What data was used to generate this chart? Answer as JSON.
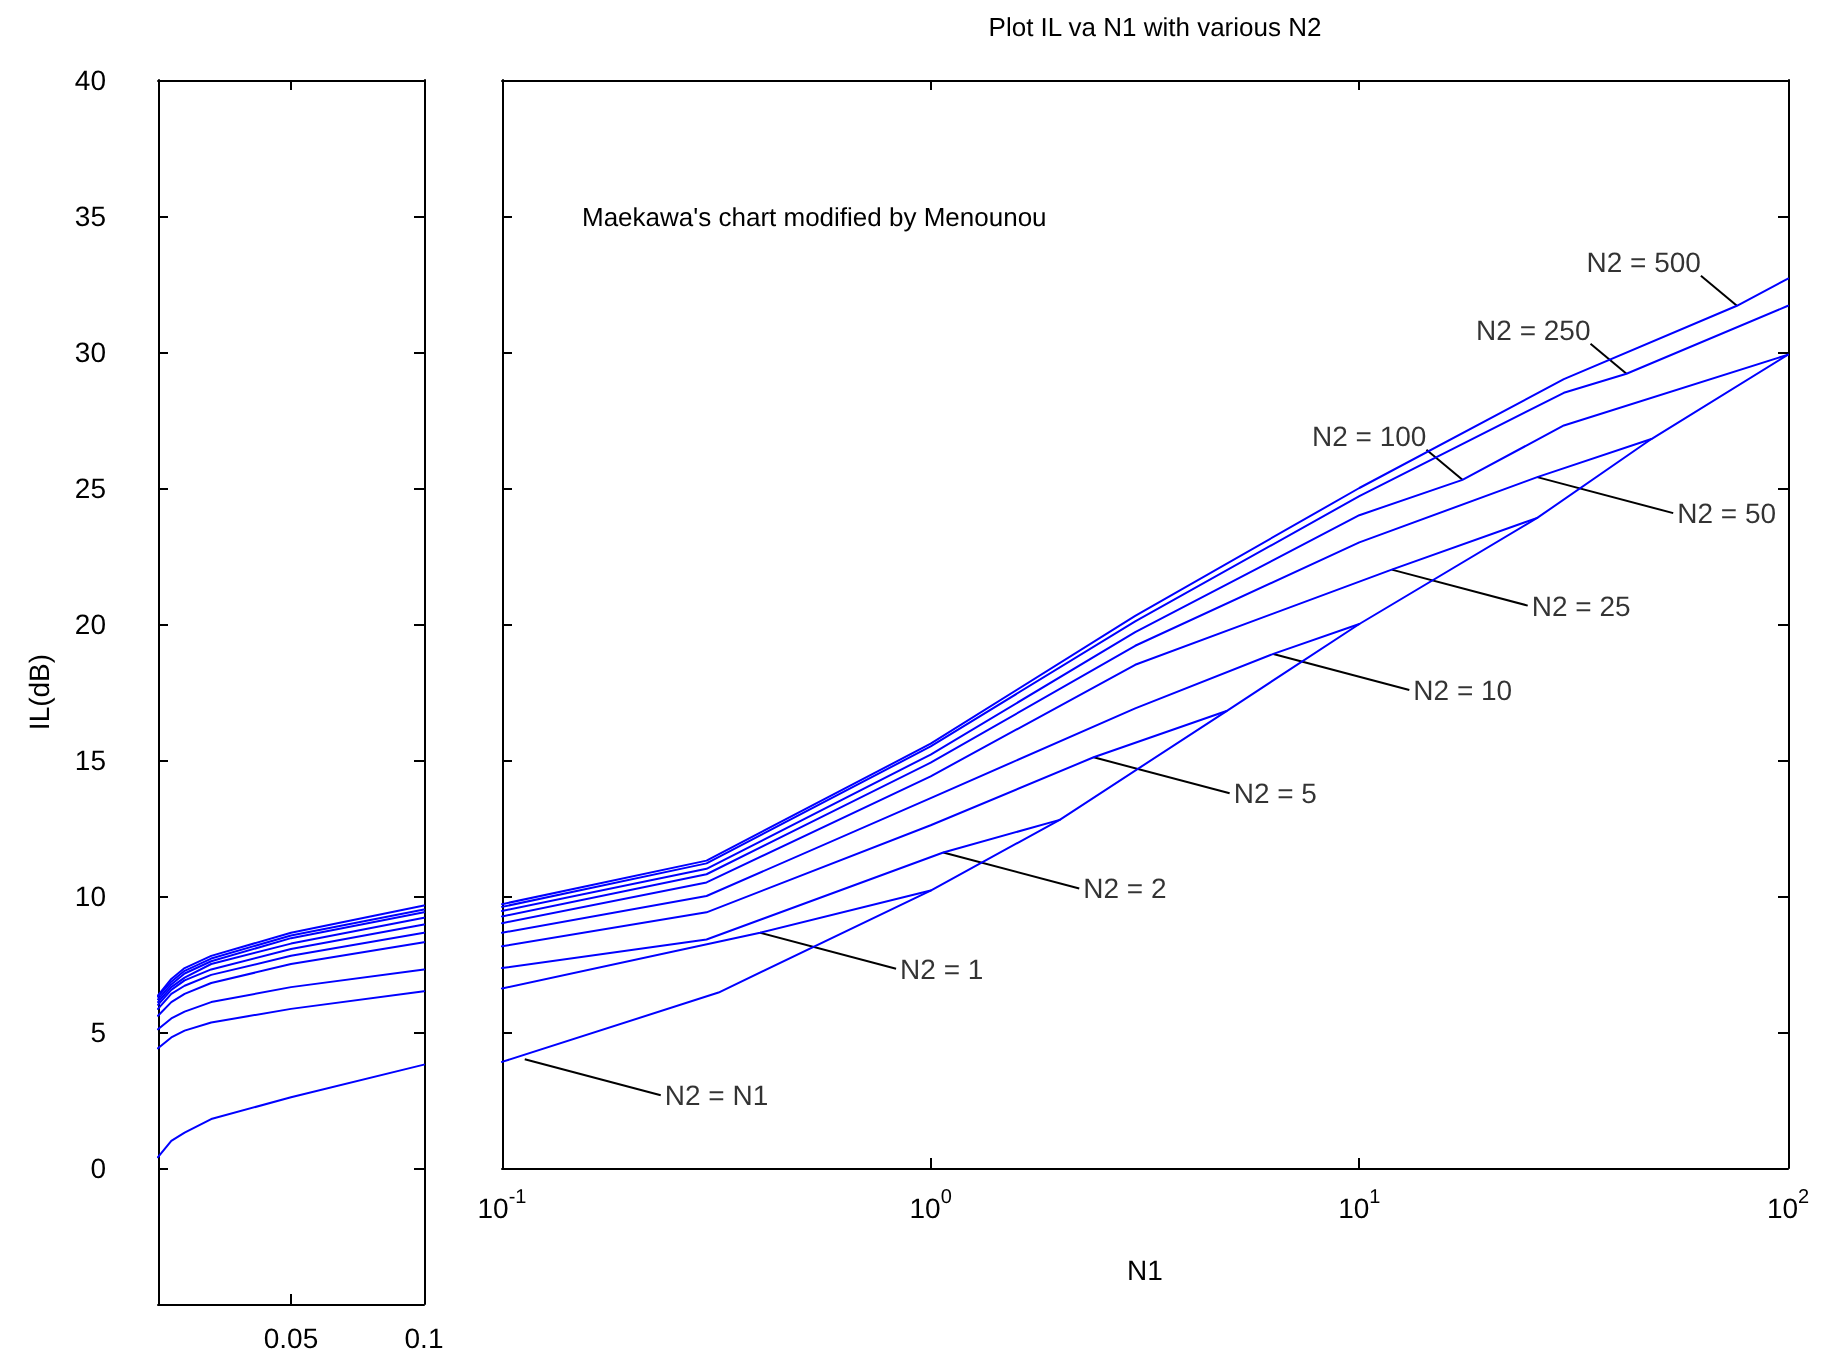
{
  "chart_data": [
    {
      "type": "line",
      "ylabel": "IL(dB)",
      "x": [
        0,
        0.005,
        0.01,
        0.02,
        0.05,
        0.1
      ],
      "xlim": [
        0,
        0.1
      ],
      "xticks": [
        0.05,
        0.1
      ],
      "ylim": [
        -5,
        40
      ],
      "yticks": [
        0,
        5,
        10,
        15,
        20,
        25,
        30,
        35,
        40
      ],
      "series": [
        {
          "color": "#0000ff",
          "values": [
            0.4,
            1.0,
            1.3,
            1.8,
            2.6,
            3.8
          ]
        },
        {
          "color": "#0000ff",
          "values": [
            4.4,
            4.8,
            5.05,
            5.35,
            5.85,
            6.5
          ]
        },
        {
          "color": "#0000ff",
          "values": [
            5.1,
            5.5,
            5.75,
            6.1,
            6.65,
            7.3
          ]
        },
        {
          "color": "#0000ff",
          "values": [
            5.6,
            6.1,
            6.4,
            6.8,
            7.5,
            8.3
          ]
        },
        {
          "color": "#0000ff",
          "values": [
            5.85,
            6.4,
            6.7,
            7.1,
            7.8,
            8.65
          ]
        },
        {
          "color": "#0000ff",
          "values": [
            6.0,
            6.55,
            6.9,
            7.3,
            8.05,
            8.95
          ]
        },
        {
          "color": "#0000ff",
          "values": [
            6.1,
            6.65,
            7.0,
            7.5,
            8.25,
            9.2
          ]
        },
        {
          "color": "#0000ff",
          "values": [
            6.2,
            6.75,
            7.15,
            7.6,
            8.45,
            9.4
          ]
        },
        {
          "color": "#0000ff",
          "values": [
            6.3,
            6.85,
            7.25,
            7.7,
            8.55,
            9.5
          ]
        },
        {
          "color": "#0000ff",
          "values": [
            6.35,
            6.95,
            7.35,
            7.8,
            8.65,
            9.65
          ]
        }
      ]
    },
    {
      "type": "line",
      "title": "Plot IL va N1 with various N2",
      "xlabel": "N1",
      "log": "x",
      "xlim": [
        0.1,
        100
      ],
      "xticks": [
        {
          "value": 0.1,
          "label": "10$^{-1}$"
        },
        {
          "value": 1,
          "label": "10$^{0}$"
        },
        {
          "value": 10,
          "label": "10$^{1}$"
        },
        {
          "value": 100,
          "label": "10$^{2}$"
        }
      ],
      "ylim": [
        0,
        40
      ],
      "yticks": [
        0,
        5,
        10,
        15,
        20,
        25,
        30,
        35,
        40
      ],
      "tick_labels": "x",
      "series": [
        {
          "color": "#0000ff",
          "x": [
            0.1,
            0.32,
            1,
            2,
            4.9,
            10,
            26,
            48,
            100
          ],
          "values": [
            3.9,
            6.45,
            10.2,
            12.8,
            16.8,
            20.0,
            23.9,
            26.8,
            29.9
          ]
        },
        {
          "color": "#0000ff",
          "x": [
            0.1,
            0.4,
            1
          ],
          "values": [
            6.6,
            8.65,
            10.2
          ]
        },
        {
          "color": "#0000ff",
          "x": [
            0.1,
            0.3,
            1.07,
            2
          ],
          "values": [
            7.35,
            8.4,
            11.6,
            12.8
          ]
        },
        {
          "color": "#0000ff",
          "x": [
            0.1,
            0.3,
            1,
            2.4,
            4.9
          ],
          "values": [
            8.15,
            9.4,
            12.6,
            15.1,
            16.8
          ]
        },
        {
          "color": "#0000ff",
          "x": [
            0.1,
            0.3,
            1,
            3,
            6.3,
            10
          ],
          "values": [
            8.65,
            10.0,
            13.6,
            16.9,
            18.9,
            20.0
          ]
        },
        {
          "color": "#0000ff",
          "x": [
            0.1,
            0.3,
            1,
            3,
            11.9,
            26
          ],
          "values": [
            9.0,
            10.5,
            14.4,
            18.5,
            22.0,
            23.9
          ]
        },
        {
          "color": "#0000ff",
          "x": [
            0.1,
            0.3,
            1,
            3,
            10,
            26,
            48
          ],
          "values": [
            9.25,
            10.8,
            14.9,
            19.2,
            23.0,
            25.4,
            26.8
          ]
        },
        {
          "color": "#0000ff",
          "x": [
            0.1,
            0.3,
            1,
            3,
            10,
            17.4,
            30,
            100
          ],
          "values": [
            9.45,
            11.0,
            15.2,
            19.7,
            24.0,
            25.3,
            27.3,
            29.9
          ]
        },
        {
          "color": "#0000ff",
          "x": [
            0.1,
            0.3,
            1,
            3,
            10,
            30,
            42,
            100
          ],
          "values": [
            9.6,
            11.2,
            15.5,
            20.1,
            24.7,
            28.5,
            29.2,
            31.7
          ]
        },
        {
          "color": "#0000ff",
          "x": [
            0.1,
            0.3,
            1,
            3,
            10,
            30,
            76,
            100
          ],
          "values": [
            9.7,
            11.3,
            15.6,
            20.3,
            25.0,
            29.0,
            31.7,
            32.7
          ]
        }
      ],
      "annotations": [
        "Maekawa's chart modified by Menounou",
        {
          "text": "N2 = N1",
          "x": 0.113,
          "y": 4.0
        },
        {
          "text": "N2 = 1",
          "x": 0.4,
          "y": 8.65
        },
        {
          "text": "N2 = 2",
          "x": 1.07,
          "y": 11.6
        },
        {
          "text": "N2 = 5",
          "x": 2.4,
          "y": 15.1
        },
        {
          "text": "N2 = 10",
          "x": 6.3,
          "y": 18.9
        },
        {
          "text": "N2 = 25",
          "x": 11.9,
          "y": 22.0
        },
        {
          "text": "N2 = 50",
          "x": 26,
          "y": 25.4
        },
        {
          "text": "N2 = 100",
          "x": 17.4,
          "y": 25.3
        },
        {
          "text": "N2 = 250",
          "x": 42,
          "y": 29.2
        },
        {
          "text": "N2 = 500",
          "x": 76,
          "y": 31.7
        }
      ]
    }
  ]
}
